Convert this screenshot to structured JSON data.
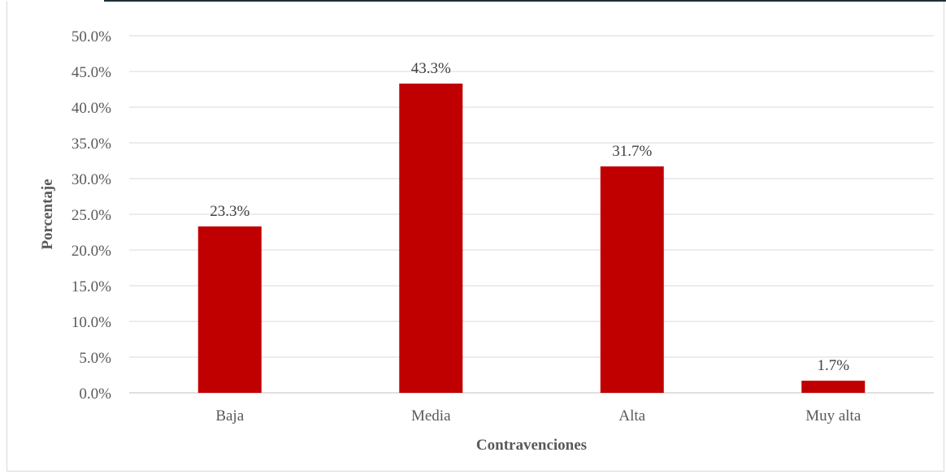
{
  "chart_data": {
    "type": "bar",
    "categories": [
      "Baja",
      "Media",
      "Alta",
      "Muy alta"
    ],
    "values": [
      23.3,
      43.3,
      31.7,
      1.7
    ],
    "value_labels": [
      "23.3%",
      "43.3%",
      "31.7%",
      "1.7%"
    ],
    "title": "",
    "xlabel": "Contravenciones",
    "ylabel": "Porcentaje",
    "ylim": [
      0,
      50
    ],
    "y_ticks": [
      0,
      5,
      10,
      15,
      20,
      25,
      30,
      35,
      40,
      45,
      50
    ],
    "y_tick_labels": [
      "0.0%",
      "5.0%",
      "10.0%",
      "15.0%",
      "20.0%",
      "25.0%",
      "30.0%",
      "35.0%",
      "40.0%",
      "45.0%",
      "50.0%"
    ],
    "grid": true,
    "legend": "none",
    "bar_color": "#c00000"
  }
}
